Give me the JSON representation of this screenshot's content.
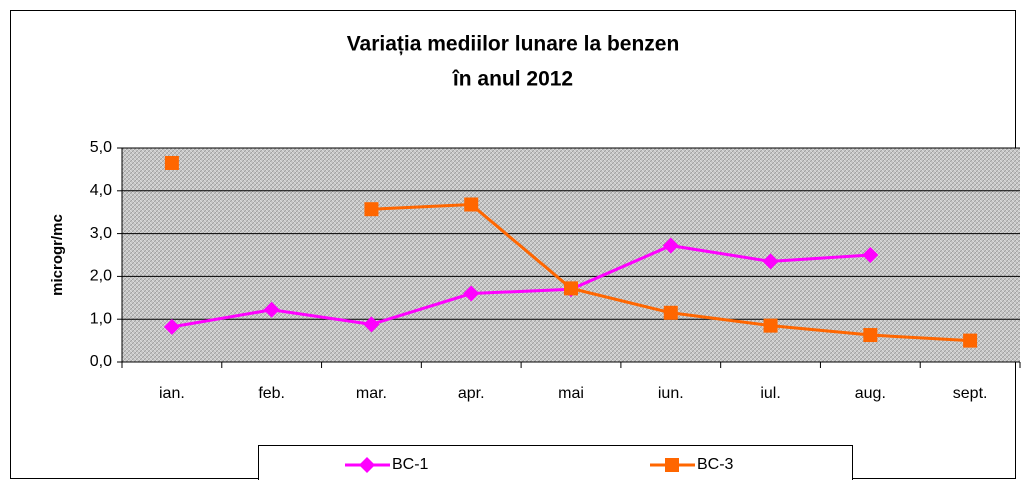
{
  "chart_data": {
    "type": "line",
    "title": "Variația mediilor lunare la benzen",
    "subtitle": "în anul 2012",
    "y_label": "microgr/mc",
    "categories": [
      "ian.",
      "feb.",
      "mar.",
      "apr.",
      "mai",
      "iun.",
      "iul.",
      "aug.",
      "sept."
    ],
    "series": [
      {
        "name": "BC-1",
        "color": "#ff00ff",
        "marker": "diamond",
        "values": [
          0.82,
          1.22,
          0.88,
          1.6,
          1.7,
          2.72,
          2.35,
          2.5,
          null
        ]
      },
      {
        "name": "BC-3",
        "color": "#ff6600",
        "marker": "square",
        "values": [
          4.65,
          null,
          3.57,
          3.68,
          1.72,
          1.15,
          0.85,
          0.63,
          0.5
        ]
      }
    ],
    "ylim": [
      0,
      5
    ],
    "yticks": [
      {
        "value": 0,
        "label": "0,0"
      },
      {
        "value": 1,
        "label": "1,0"
      },
      {
        "value": 2,
        "label": "2,0"
      },
      {
        "value": 3,
        "label": "3,0"
      },
      {
        "value": 4,
        "label": "4,0"
      },
      {
        "value": 5,
        "label": "5,0"
      }
    ],
    "grid": true,
    "legend": "bottom"
  }
}
